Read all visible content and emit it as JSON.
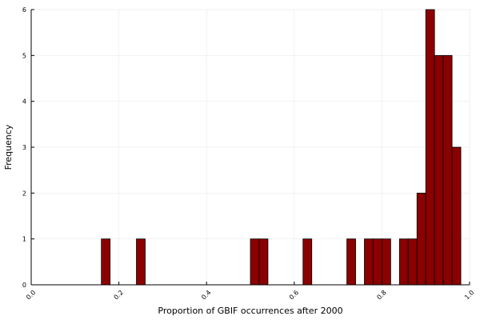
{
  "chart_data": {
    "type": "bar",
    "title": "",
    "xlabel": "Proportion of GBIF occurrences after 2000",
    "ylabel": "Frequency",
    "xlim": [
      0.0,
      1.0
    ],
    "ylim": [
      0,
      6
    ],
    "x_ticks": [
      "0.0",
      "0.2",
      "0.4",
      "0.6",
      "0.8",
      "1.0"
    ],
    "x_tick_values": [
      0.0,
      0.2,
      0.4,
      0.6,
      0.8,
      1.0
    ],
    "y_ticks": [
      "0",
      "1",
      "2",
      "3",
      "4",
      "5",
      "6"
    ],
    "y_tick_values": [
      0,
      1,
      2,
      3,
      4,
      5,
      6
    ],
    "grid": true,
    "legend": "none",
    "bar_color": "#8b0000",
    "bin_width": 0.02,
    "bins": [
      {
        "start": 0.16,
        "end": 0.18,
        "count": 1
      },
      {
        "start": 0.24,
        "end": 0.26,
        "count": 1
      },
      {
        "start": 0.5,
        "end": 0.52,
        "count": 1
      },
      {
        "start": 0.52,
        "end": 0.54,
        "count": 1
      },
      {
        "start": 0.62,
        "end": 0.64,
        "count": 1
      },
      {
        "start": 0.72,
        "end": 0.74,
        "count": 1
      },
      {
        "start": 0.76,
        "end": 0.78,
        "count": 1
      },
      {
        "start": 0.78,
        "end": 0.8,
        "count": 1
      },
      {
        "start": 0.8,
        "end": 0.82,
        "count": 1
      },
      {
        "start": 0.84,
        "end": 0.86,
        "count": 1
      },
      {
        "start": 0.86,
        "end": 0.88,
        "count": 1
      },
      {
        "start": 0.88,
        "end": 0.9,
        "count": 2
      },
      {
        "start": 0.9,
        "end": 0.92,
        "count": 6
      },
      {
        "start": 0.92,
        "end": 0.94,
        "count": 5
      },
      {
        "start": 0.94,
        "end": 0.96,
        "count": 5
      },
      {
        "start": 0.96,
        "end": 0.98,
        "count": 3
      }
    ]
  }
}
